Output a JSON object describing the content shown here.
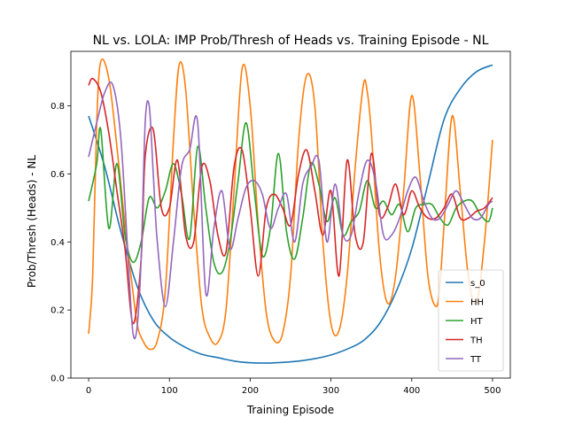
{
  "chart_data": {
    "type": "line",
    "title": "NL vs. LOLA: IMP Prob/Thresh of Heads vs. Training Episode - NL",
    "xlabel": "Training Episode",
    "ylabel": "Prob/Thresh (Heads) - NL",
    "xlim": [
      -22,
      522
    ],
    "ylim": [
      0.0,
      0.96
    ],
    "xticks": [
      0,
      100,
      200,
      300,
      400,
      500
    ],
    "xtick_labels": [
      "0",
      "100",
      "200",
      "300",
      "400",
      "500"
    ],
    "yticks": [
      0.0,
      0.2,
      0.4,
      0.6,
      0.8
    ],
    "ytick_labels": [
      "0.0",
      "0.2",
      "0.4",
      "0.6",
      "0.8"
    ],
    "grid": false,
    "legend_position": "lower-right",
    "series": [
      {
        "name": "s_0",
        "color": "#1f77b4",
        "x": [
          0,
          20,
          40,
          60,
          80,
          100,
          120,
          140,
          160,
          180,
          200,
          220,
          240,
          260,
          280,
          300,
          320,
          340,
          360,
          380,
          400,
          420,
          440,
          460,
          480,
          500
        ],
        "y": [
          0.77,
          0.62,
          0.43,
          0.27,
          0.17,
          0.12,
          0.09,
          0.07,
          0.06,
          0.05,
          0.045,
          0.044,
          0.046,
          0.05,
          0.057,
          0.068,
          0.085,
          0.11,
          0.16,
          0.25,
          0.38,
          0.57,
          0.76,
          0.85,
          0.9,
          0.92
        ]
      },
      {
        "name": "HH",
        "color": "#ff7f0e",
        "x": [
          0,
          5,
          10,
          15,
          25,
          35,
          45,
          55,
          60,
          65,
          75,
          85,
          95,
          105,
          112,
          120,
          130,
          140,
          150,
          160,
          170,
          180,
          190,
          200,
          210,
          220,
          230,
          240,
          250,
          260,
          270,
          280,
          290,
          300,
          310,
          320,
          330,
          340,
          345,
          350,
          360,
          370,
          380,
          390,
          400,
          410,
          420,
          430,
          435,
          440,
          450,
          460,
          470,
          480,
          490,
          500
        ],
        "y": [
          0.13,
          0.3,
          0.75,
          0.93,
          0.88,
          0.68,
          0.45,
          0.25,
          0.16,
          0.12,
          0.085,
          0.11,
          0.26,
          0.7,
          0.92,
          0.85,
          0.5,
          0.21,
          0.12,
          0.105,
          0.2,
          0.55,
          0.91,
          0.8,
          0.45,
          0.19,
          0.11,
          0.13,
          0.3,
          0.7,
          0.89,
          0.8,
          0.4,
          0.16,
          0.14,
          0.3,
          0.62,
          0.86,
          0.84,
          0.72,
          0.37,
          0.22,
          0.3,
          0.55,
          0.83,
          0.6,
          0.3,
          0.21,
          0.28,
          0.45,
          0.77,
          0.55,
          0.3,
          0.22,
          0.4,
          0.7
        ]
      },
      {
        "name": "HT",
        "color": "#2ca02c",
        "x": [
          0,
          10,
          15,
          25,
          35,
          45,
          55,
          65,
          75,
          85,
          95,
          105,
          115,
          125,
          135,
          145,
          155,
          165,
          175,
          185,
          195,
          205,
          215,
          225,
          235,
          245,
          255,
          265,
          275,
          285,
          295,
          305,
          315,
          325,
          335,
          345,
          355,
          365,
          375,
          385,
          395,
          405,
          415,
          425,
          435,
          445,
          455,
          465,
          475,
          485,
          495,
          500
        ],
        "y": [
          0.52,
          0.63,
          0.73,
          0.44,
          0.63,
          0.42,
          0.34,
          0.4,
          0.53,
          0.5,
          0.55,
          0.63,
          0.54,
          0.41,
          0.68,
          0.5,
          0.34,
          0.31,
          0.4,
          0.58,
          0.75,
          0.55,
          0.36,
          0.44,
          0.66,
          0.43,
          0.35,
          0.47,
          0.63,
          0.57,
          0.46,
          0.53,
          0.42,
          0.46,
          0.49,
          0.58,
          0.5,
          0.52,
          0.48,
          0.51,
          0.43,
          0.5,
          0.51,
          0.51,
          0.47,
          0.45,
          0.5,
          0.52,
          0.52,
          0.48,
          0.46,
          0.5
        ]
      },
      {
        "name": "TH",
        "color": "#d62728",
        "x": [
          0,
          5,
          15,
          25,
          35,
          45,
          55,
          65,
          70,
          80,
          90,
          100,
          110,
          120,
          130,
          140,
          150,
          160,
          170,
          180,
          190,
          200,
          210,
          220,
          230,
          240,
          250,
          260,
          270,
          280,
          290,
          300,
          310,
          320,
          330,
          340,
          350,
          360,
          370,
          380,
          390,
          400,
          410,
          420,
          430,
          440,
          450,
          460,
          470,
          480,
          490,
          500
        ],
        "y": [
          0.86,
          0.88,
          0.84,
          0.72,
          0.55,
          0.38,
          0.16,
          0.35,
          0.65,
          0.73,
          0.5,
          0.5,
          0.64,
          0.42,
          0.4,
          0.62,
          0.58,
          0.42,
          0.37,
          0.62,
          0.67,
          0.5,
          0.3,
          0.5,
          0.54,
          0.5,
          0.45,
          0.6,
          0.67,
          0.55,
          0.42,
          0.55,
          0.3,
          0.64,
          0.42,
          0.4,
          0.66,
          0.48,
          0.5,
          0.57,
          0.48,
          0.55,
          0.5,
          0.47,
          0.47,
          0.5,
          0.54,
          0.47,
          0.47,
          0.49,
          0.5,
          0.53
        ]
      },
      {
        "name": "TT",
        "color": "#9467bd",
        "x": [
          0,
          10,
          20,
          30,
          40,
          50,
          55,
          60,
          65,
          70,
          75,
          80,
          85,
          95,
          105,
          115,
          125,
          135,
          145,
          155,
          165,
          175,
          185,
          195,
          205,
          215,
          225,
          235,
          245,
          255,
          265,
          275,
          285,
          295,
          305,
          315,
          325,
          335,
          345,
          355,
          365,
          375,
          385,
          395,
          405,
          415,
          425,
          435,
          445,
          455,
          465,
          475,
          485,
          495,
          500
        ],
        "y": [
          0.65,
          0.75,
          0.84,
          0.86,
          0.7,
          0.3,
          0.13,
          0.15,
          0.35,
          0.75,
          0.8,
          0.6,
          0.4,
          0.21,
          0.4,
          0.62,
          0.67,
          0.75,
          0.25,
          0.44,
          0.55,
          0.38,
          0.47,
          0.56,
          0.58,
          0.54,
          0.44,
          0.5,
          0.54,
          0.4,
          0.57,
          0.62,
          0.64,
          0.4,
          0.57,
          0.42,
          0.42,
          0.55,
          0.64,
          0.58,
          0.42,
          0.42,
          0.47,
          0.55,
          0.59,
          0.52,
          0.47,
          0.47,
          0.51,
          0.55,
          0.51,
          0.47,
          0.47,
          0.51,
          0.52
        ]
      }
    ]
  }
}
